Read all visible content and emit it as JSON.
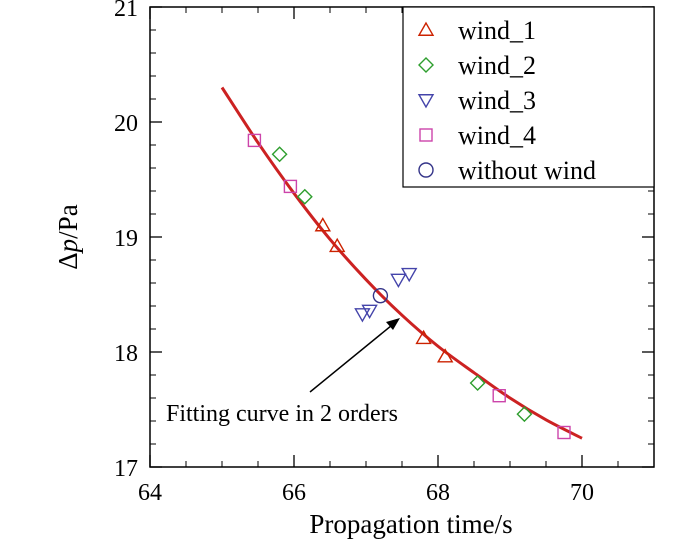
{
  "chart_data": {
    "type": "scatter",
    "title": "",
    "xlabel": "Propagation time/s",
    "ylabel": "Δp/Pa",
    "xlim": [
      64,
      71
    ],
    "ylim": [
      17,
      21
    ],
    "xticks": [
      64,
      66,
      68,
      70
    ],
    "yticks": [
      17,
      18,
      19,
      20,
      21
    ],
    "xtick_labels": [
      "64",
      "66",
      "68",
      "70"
    ],
    "ytick_labels": [
      "17",
      "18",
      "19",
      "20",
      "21"
    ],
    "grid": false,
    "legend_position": "top-right",
    "series": [
      {
        "name": "wind_1",
        "marker": "triangle-up",
        "color": "#cc2200",
        "points": [
          [
            66.4,
            19.1
          ],
          [
            66.6,
            18.92
          ],
          [
            67.8,
            18.12
          ],
          [
            68.1,
            17.96
          ]
        ]
      },
      {
        "name": "wind_2",
        "marker": "diamond",
        "color": "#2e9e2e",
        "points": [
          [
            65.8,
            19.72
          ],
          [
            66.15,
            19.35
          ],
          [
            68.55,
            17.73
          ],
          [
            69.2,
            17.46
          ]
        ]
      },
      {
        "name": "wind_3",
        "marker": "triangle-down",
        "color": "#4444aa",
        "points": [
          [
            66.95,
            18.33
          ],
          [
            67.05,
            18.36
          ],
          [
            67.45,
            18.63
          ],
          [
            67.6,
            18.68
          ]
        ]
      },
      {
        "name": "wind_4",
        "marker": "square",
        "color": "#cc44aa",
        "points": [
          [
            65.45,
            19.84
          ],
          [
            65.95,
            19.44
          ],
          [
            68.85,
            17.62
          ],
          [
            69.75,
            17.3
          ]
        ]
      },
      {
        "name": "without wind",
        "marker": "circle",
        "color": "#333388",
        "points": [
          [
            67.2,
            18.49
          ]
        ]
      }
    ],
    "fit_curve": {
      "label": "Fitting curve in 2 orders",
      "order": 2,
      "color": "#cc2222",
      "x": [
        65.0,
        65.5,
        66.0,
        66.5,
        67.0,
        67.5,
        68.0,
        68.5,
        69.0,
        69.5,
        70.0
      ],
      "y": [
        20.3,
        19.82,
        19.38,
        18.98,
        18.63,
        18.32,
        18.05,
        17.82,
        17.6,
        17.41,
        17.25
      ]
    },
    "annotations": [
      {
        "text": "Fitting curve in 2 orders",
        "arrow_to": [
          67.5,
          18.32
        ]
      }
    ]
  }
}
